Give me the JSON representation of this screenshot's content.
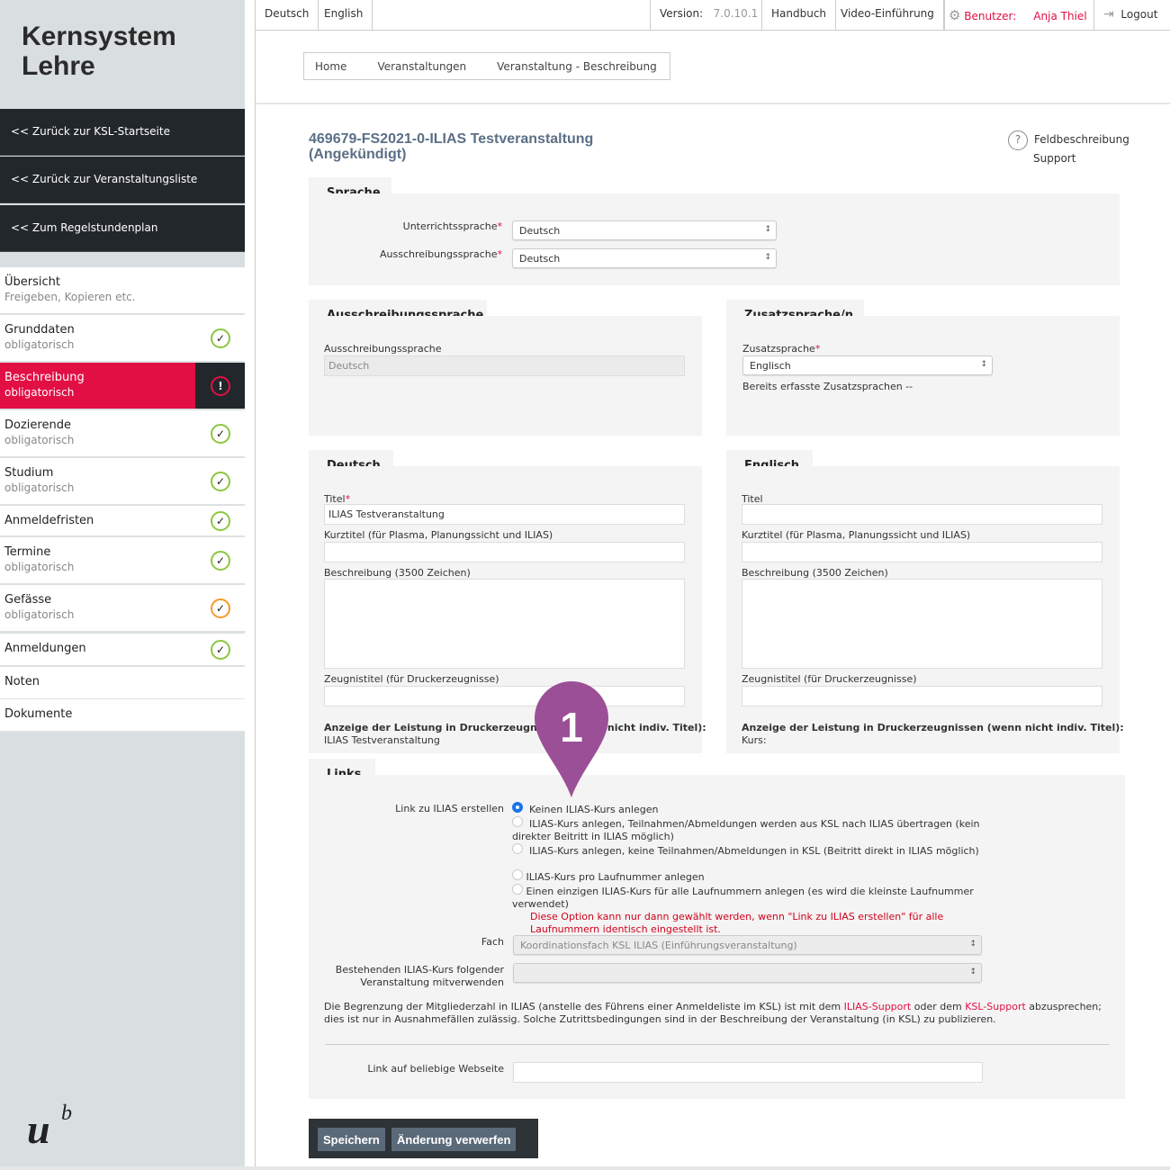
{
  "app": {
    "title": "Kernsystem Lehre"
  },
  "sidebar": {
    "back_links": [
      "<< Zurück zur KSL-Startseite",
      "<< Zurück zur Veranstaltungsliste",
      "<< Zum Regelstundenplan"
    ],
    "items": [
      {
        "label": "Übersicht",
        "sub": "Freigeben, Kopieren etc.",
        "status": "none"
      },
      {
        "label": "Grunddaten",
        "sub": "obligatorisch",
        "status": "ok"
      },
      {
        "label": "Beschreibung",
        "sub": "obligatorisch",
        "status": "error"
      },
      {
        "label": "Dozierende",
        "sub": "obligatorisch",
        "status": "ok"
      },
      {
        "label": "Studium",
        "sub": "obligatorisch",
        "status": "ok"
      },
      {
        "label": "Anmeldefristen",
        "sub": "",
        "status": "ok"
      },
      {
        "label": "Termine",
        "sub": "obligatorisch",
        "status": "ok"
      },
      {
        "label": "Gefässe",
        "sub": "obligatorisch",
        "status": "warning"
      },
      {
        "label": "Anmeldungen",
        "sub": "",
        "status": "ok"
      },
      {
        "label": "Noten",
        "sub": "",
        "status": "none"
      },
      {
        "label": "Dokumente",
        "sub": "",
        "status": "none"
      }
    ]
  },
  "topbar": {
    "lang_de": "Deutsch",
    "lang_en": "English",
    "version_label": "Version:",
    "version": "7.0.10.1",
    "handbuch": "Handbuch",
    "video": "Video-Einführung",
    "user_label": "Benutzer:",
    "user": "Anja Thiel",
    "logout": "Logout"
  },
  "breadcrumb": [
    "Home",
    "Veranstaltungen",
    "Veranstaltung - Beschreibung"
  ],
  "page": {
    "title1": "469679-FS2021-0-ILIAS Testveranstaltung",
    "title2": "(Angekündigt)",
    "help": "Feldbeschreibung",
    "support": "Support"
  },
  "sprache": {
    "tab": "Sprache",
    "unterricht_label": "Unterrichtssprache",
    "unterricht_value": "Deutsch",
    "ausschreibung_label": "Ausschreibungssprache",
    "ausschreibung_value": "Deutsch"
  },
  "ausschreibung": {
    "tab": "Ausschreibungssprache",
    "label": "Ausschreibungssprache",
    "value": "Deutsch"
  },
  "zusatz": {
    "tab": "Zusatzsprache/n",
    "label": "Zusatzsprache",
    "value": "Englisch",
    "existing": "Bereits erfasste Zusatzsprachen --"
  },
  "deutsch": {
    "tab": "Deutsch",
    "titel_label": "Titel",
    "titel_value": "ILIAS Testveranstaltung",
    "kurztitel_label": "Kurztitel (für Plasma, Planungssicht und ILIAS)",
    "beschreibung_label": "Beschreibung (3500 Zeichen)",
    "zeugnis_label": "Zeugnistitel (für Druckerzeugnisse)",
    "anzeige_label": "Anzeige der Leistung in Druckerzeugnissen (wenn nicht indiv. Titel):",
    "anzeige_value": "ILIAS Testveranstaltung"
  },
  "englisch": {
    "tab": "Englisch",
    "titel_label": "Titel",
    "kurztitel_label": "Kurztitel (für Plasma, Planungssicht und ILIAS)",
    "beschreibung_label": "Beschreibung (3500 Zeichen)",
    "zeugnis_label": "Zeugnistitel (für Druckerzeugnisse)",
    "anzeige_label": "Anzeige der Leistung in Druckerzeugnissen (wenn nicht indiv. Titel):",
    "anzeige_value": "Kurs:"
  },
  "links": {
    "tab": "Links",
    "ilias_label": "Link zu ILIAS erstellen",
    "options": [
      "Keinen ILIAS-Kurs anlegen",
      "ILIAS-Kurs anlegen, Teilnahmen/Abmeldungen werden aus KSL nach ILIAS übertragen (kein direkter Beitritt in ILIAS möglich)",
      "ILIAS-Kurs anlegen, keine Teilnahmen/Abmeldungen in KSL (Beitritt direkt in ILIAS möglich)"
    ],
    "selected": 0,
    "options2": [
      "ILIAS-Kurs pro Laufnummer anlegen",
      "Einen einzigen ILIAS-Kurs für alle Laufnummern anlegen (es wird die kleinste Laufnummer verwendet)"
    ],
    "warning": "Diese Option kann nur dann gewählt werden, wenn \"Link zu ILIAS erstellen\" für alle Laufnummern identisch eingestellt ist.",
    "fach_label": "Fach",
    "fach_value": "Koordinationsfach KSL ILIAS (Einführungsveranstaltung)",
    "bestehend_label1": "Bestehenden ILIAS-Kurs folgender",
    "bestehend_label2": "Veranstaltung mitverwenden",
    "info_1": "Die Begrenzung der Mitgliederzahl in ILIAS (anstelle des Führens einer Anmeldeliste im KSL) ist mit dem ",
    "info_link1": "ILIAS-Support",
    "info_2": " oder dem ",
    "info_link2": "KSL-Support",
    "info_3": " abzusprechen; dies ist nur in Ausnahmefällen zulässig. Solche Zutrittsbedingungen sind in der Beschreibung der Veranstaltung (in KSL) zu publizieren.",
    "webseite_label": "Link auf beliebige Webseite"
  },
  "actions": {
    "save": "Speichern",
    "discard": "Änderung verwerfen"
  },
  "annotation": {
    "number": "1",
    "color": "#9b4f96"
  },
  "colors": {
    "accent": "#e20f44",
    "ok": "#8dc63f",
    "warning": "#f39a2b",
    "title": "#5b6f86"
  }
}
